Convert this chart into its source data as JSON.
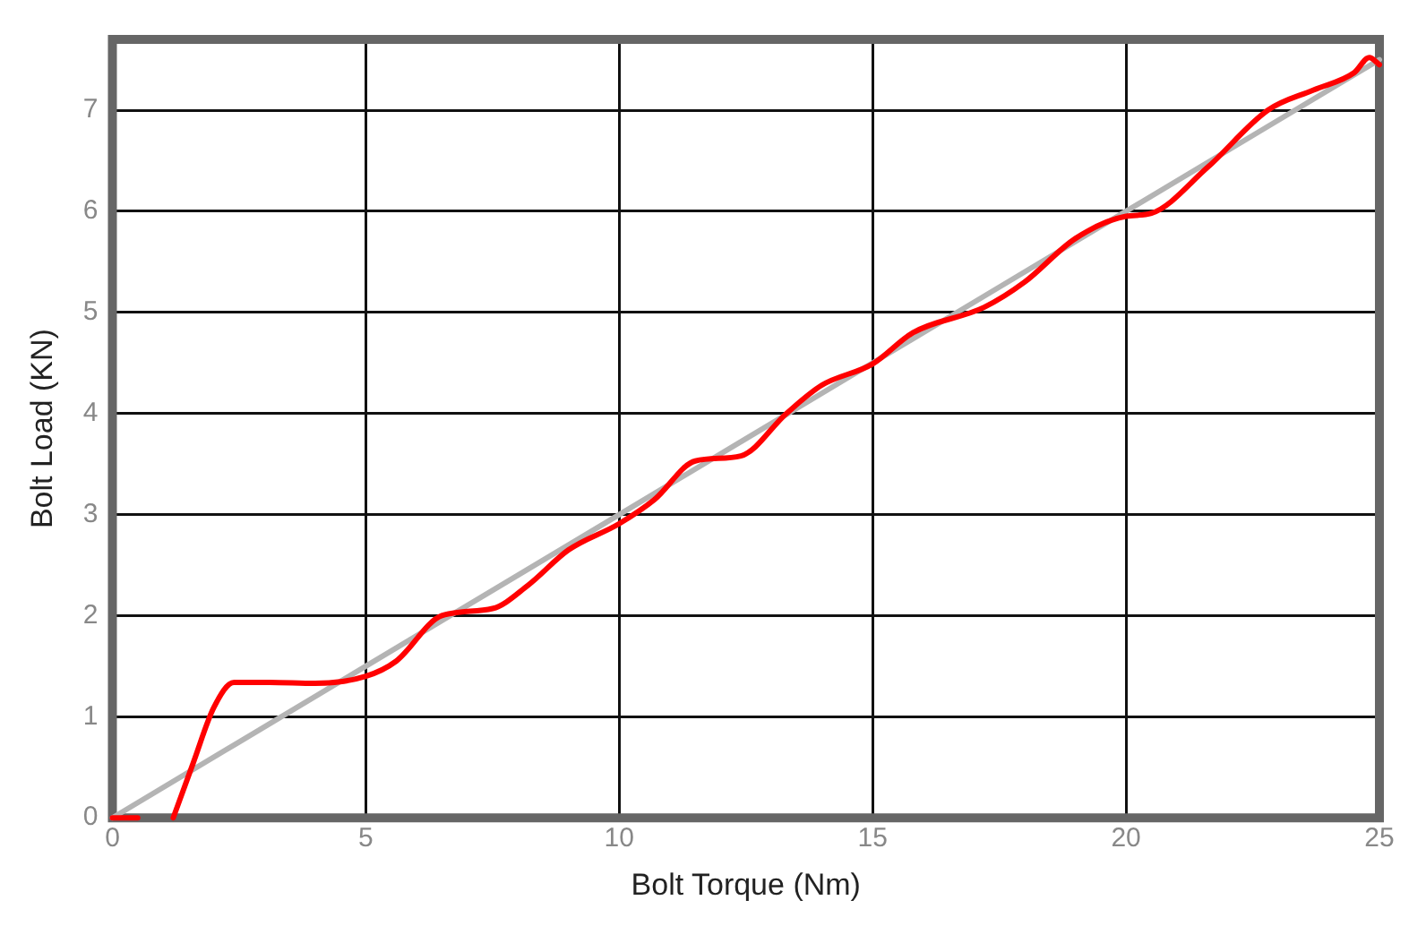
{
  "chart_data": {
    "type": "line",
    "xlabel": "Bolt Torque (Nm)",
    "ylabel": "Bolt Load (KN)",
    "xlim": [
      0,
      25
    ],
    "xticks": [
      0,
      5,
      10,
      15,
      20,
      25
    ],
    "ylim": [
      0,
      7.7
    ],
    "yticks": [
      0,
      1,
      2,
      3,
      4,
      5,
      6,
      7
    ],
    "grid": true,
    "legend": false,
    "marker": "none",
    "line_style": "solid",
    "series": [
      {
        "color": "#b4b4b4",
        "x": [
          0,
          5,
          10,
          15,
          20,
          25
        ],
        "values": [
          0,
          1.5,
          3,
          4.5,
          6,
          7.5
        ]
      },
      {
        "color": "#ff0000",
        "x": [
          0,
          0.5,
          0.9,
          1.2,
          1.6,
          2,
          2.4,
          3.1,
          4,
          5,
          5.6,
          6.5,
          7.5,
          8.2,
          9,
          10,
          10.7,
          11.5,
          12.4,
          13.3,
          14,
          15,
          15.8,
          17.2,
          18,
          19,
          20,
          20.5,
          21.6,
          22.8,
          23.7,
          24.5,
          24.8,
          25
        ],
        "values": [
          0,
          0,
          null,
          0,
          0.55,
          1.09,
          1.34,
          1.34,
          1.33,
          1.4,
          1.55,
          2,
          2.07,
          2.3,
          2.65,
          2.91,
          3.15,
          3.53,
          3.58,
          4,
          4.28,
          4.49,
          4.8,
          5.05,
          5.3,
          5.73,
          5.95,
          5.98,
          6.43,
          7,
          7.2,
          7.37,
          7.52,
          7.45
        ]
      }
    ]
  }
}
